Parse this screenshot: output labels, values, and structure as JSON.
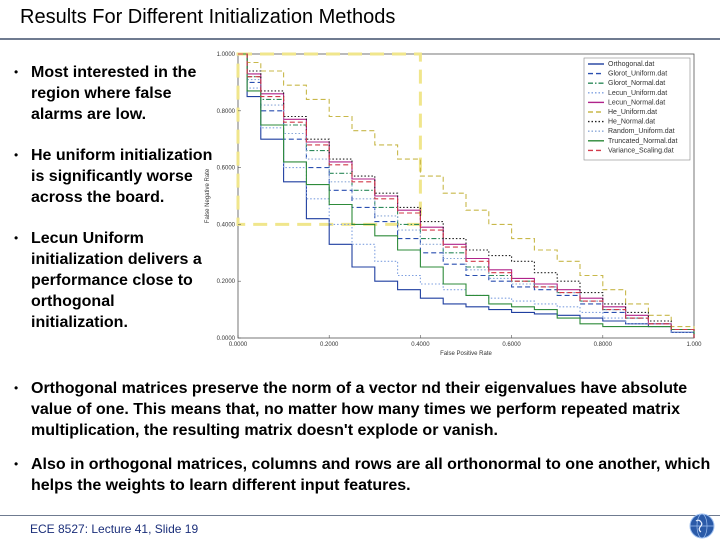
{
  "slide": {
    "title": "Results For Different Initialization Methods",
    "bullets_left": [
      "Most interested in the region where false alarms are low.",
      "He uniform initialization is significantly worse across the board.",
      "Lecun Uniform initialization delivers a performance close to orthogonal initialization."
    ],
    "bullets_bottom": [
      "Orthogonal matrices preserve the norm of a vector nd their eigenvalues have absolute value of one. This means that, no matter how many times we perform repeated matrix multiplication, the resulting matrix doesn't explode or vanish.",
      "Also in orthogonal matrices, columns and rows are all orthonormal to one another, which helps the weights to learn different input features."
    ],
    "footer": "ECE 8527: Lecture 41, Slide 19",
    "bullet_char": "•",
    "colors": {
      "rule": "#6f7b90",
      "footer_text": "#1b2f7a",
      "highlight": "#f0e68c"
    }
  },
  "chart_data": {
    "type": "line",
    "title": "",
    "xlabel": "False Positive Rate",
    "ylabel": "False Negative Rate",
    "xlim": [
      0,
      1
    ],
    "ylim": [
      0,
      1
    ],
    "x_ticks": [
      "0.0000",
      "0.2000",
      "0.4000",
      "0.6000",
      "0.8000",
      "1.000"
    ],
    "y_ticks": [
      "0.0000",
      "0.2000",
      "0.4000",
      "0.6000",
      "0.8000",
      "1.0000"
    ],
    "legend_position": "top-right",
    "highlight_region": {
      "x": [
        0,
        0.4
      ],
      "y": [
        0.4,
        1.0
      ],
      "label": ""
    },
    "series": [
      {
        "name": "Orthogonal.dat",
        "color": "#1f3fa0",
        "dash": "solid",
        "x": [
          0,
          0.02,
          0.05,
          0.1,
          0.15,
          0.2,
          0.25,
          0.3,
          0.35,
          0.4,
          0.45,
          0.5,
          0.55,
          0.6,
          0.65,
          0.7,
          0.75,
          0.8,
          0.85,
          0.9,
          0.95,
          1.0
        ],
        "y": [
          1.0,
          0.85,
          0.7,
          0.55,
          0.42,
          0.33,
          0.25,
          0.2,
          0.17,
          0.14,
          0.12,
          0.11,
          0.1,
          0.09,
          0.085,
          0.08,
          0.07,
          0.06,
          0.05,
          0.04,
          0.02,
          0.0
        ]
      },
      {
        "name": "Glorot_Uniform.dat",
        "color": "#2a4fb0",
        "dash": "dash",
        "x": [
          0,
          0.02,
          0.05,
          0.1,
          0.15,
          0.2,
          0.25,
          0.3,
          0.35,
          0.4,
          0.45,
          0.5,
          0.55,
          0.6,
          0.65,
          0.7,
          0.75,
          0.8,
          0.85,
          0.9,
          0.95,
          1.0
        ],
        "y": [
          1.0,
          0.9,
          0.8,
          0.7,
          0.6,
          0.52,
          0.46,
          0.41,
          0.35,
          0.3,
          0.26,
          0.22,
          0.2,
          0.18,
          0.17,
          0.15,
          0.12,
          0.09,
          0.07,
          0.05,
          0.03,
          0.0
        ]
      },
      {
        "name": "Glorot_Normal.dat",
        "color": "#2c8a5a",
        "dash": "dashdot",
        "x": [
          0,
          0.02,
          0.05,
          0.1,
          0.15,
          0.2,
          0.25,
          0.3,
          0.35,
          0.4,
          0.45,
          0.5,
          0.55,
          0.6,
          0.65,
          0.7,
          0.75,
          0.8,
          0.85,
          0.9,
          0.95,
          1.0
        ],
        "y": [
          1.0,
          0.92,
          0.84,
          0.75,
          0.66,
          0.58,
          0.52,
          0.46,
          0.4,
          0.35,
          0.3,
          0.25,
          0.22,
          0.2,
          0.18,
          0.16,
          0.13,
          0.1,
          0.07,
          0.05,
          0.03,
          0.0
        ]
      },
      {
        "name": "Lecun_Uniform.dat",
        "color": "#7fa0e0",
        "dash": "dot",
        "x": [
          0,
          0.02,
          0.05,
          0.1,
          0.15,
          0.2,
          0.25,
          0.3,
          0.35,
          0.4,
          0.45,
          0.5,
          0.55,
          0.6,
          0.65,
          0.7,
          0.75,
          0.8,
          0.85,
          0.9,
          0.95,
          1.0
        ],
        "y": [
          1.0,
          0.88,
          0.74,
          0.6,
          0.49,
          0.4,
          0.33,
          0.27,
          0.22,
          0.19,
          0.17,
          0.15,
          0.14,
          0.13,
          0.12,
          0.11,
          0.09,
          0.07,
          0.05,
          0.04,
          0.02,
          0.0
        ]
      },
      {
        "name": "Lecun_Normal.dat",
        "color": "#b0238a",
        "dash": "solid",
        "x": [
          0,
          0.02,
          0.05,
          0.1,
          0.15,
          0.2,
          0.25,
          0.3,
          0.35,
          0.4,
          0.45,
          0.5,
          0.55,
          0.6,
          0.65,
          0.7,
          0.75,
          0.8,
          0.85,
          0.9,
          0.95,
          1.0
        ],
        "y": [
          1.0,
          0.93,
          0.86,
          0.77,
          0.69,
          0.62,
          0.56,
          0.5,
          0.45,
          0.39,
          0.33,
          0.28,
          0.24,
          0.21,
          0.19,
          0.17,
          0.14,
          0.11,
          0.08,
          0.05,
          0.03,
          0.0
        ]
      },
      {
        "name": "He_Uniform.dat",
        "color": "#c8b84a",
        "dash": "dash",
        "x": [
          0,
          0.02,
          0.05,
          0.1,
          0.15,
          0.2,
          0.25,
          0.3,
          0.35,
          0.4,
          0.45,
          0.5,
          0.55,
          0.6,
          0.65,
          0.7,
          0.75,
          0.8,
          0.85,
          0.9,
          0.95,
          1.0
        ],
        "y": [
          1.0,
          0.97,
          0.94,
          0.89,
          0.84,
          0.78,
          0.73,
          0.68,
          0.63,
          0.57,
          0.51,
          0.45,
          0.4,
          0.35,
          0.31,
          0.27,
          0.22,
          0.17,
          0.12,
          0.08,
          0.04,
          0.0
        ]
      },
      {
        "name": "He_Normal.dat",
        "color": "#222222",
        "dash": "dot",
        "x": [
          0,
          0.02,
          0.05,
          0.1,
          0.15,
          0.2,
          0.25,
          0.3,
          0.35,
          0.4,
          0.45,
          0.5,
          0.55,
          0.6,
          0.65,
          0.7,
          0.75,
          0.8,
          0.85,
          0.9,
          0.95,
          1.0
        ],
        "y": [
          1.0,
          0.94,
          0.87,
          0.78,
          0.7,
          0.63,
          0.57,
          0.51,
          0.46,
          0.41,
          0.35,
          0.31,
          0.29,
          0.27,
          0.23,
          0.2,
          0.16,
          0.12,
          0.09,
          0.06,
          0.03,
          0.0
        ]
      },
      {
        "name": "Random_Uniform.dat",
        "color": "#8aa8d8",
        "dash": "dot",
        "x": [
          0,
          0.02,
          0.05,
          0.1,
          0.15,
          0.2,
          0.25,
          0.3,
          0.35,
          0.4,
          0.45,
          0.5,
          0.55,
          0.6,
          0.65,
          0.7,
          0.75,
          0.8,
          0.85,
          0.9,
          0.95,
          1.0
        ],
        "y": [
          1.0,
          0.91,
          0.82,
          0.72,
          0.63,
          0.55,
          0.49,
          0.43,
          0.38,
          0.33,
          0.28,
          0.24,
          0.21,
          0.19,
          0.18,
          0.16,
          0.13,
          0.1,
          0.07,
          0.05,
          0.03,
          0.0
        ]
      },
      {
        "name": "Truncated_Normal.dat",
        "color": "#2e8b3a",
        "dash": "solid",
        "x": [
          0,
          0.02,
          0.05,
          0.1,
          0.15,
          0.2,
          0.25,
          0.3,
          0.35,
          0.4,
          0.45,
          0.5,
          0.55,
          0.6,
          0.65,
          0.7,
          0.75,
          0.8,
          0.85,
          0.9,
          0.95,
          1.0
        ],
        "y": [
          1.0,
          0.87,
          0.75,
          0.62,
          0.54,
          0.47,
          0.4,
          0.36,
          0.31,
          0.25,
          0.19,
          0.15,
          0.12,
          0.11,
          0.1,
          0.07,
          0.05,
          0.04,
          0.04,
          0.04,
          0.03,
          0.0
        ]
      },
      {
        "name": "Variance_Scaling.dat",
        "color": "#d23a4a",
        "dash": "dash",
        "x": [
          0,
          0.02,
          0.05,
          0.1,
          0.15,
          0.2,
          0.25,
          0.3,
          0.35,
          0.4,
          0.45,
          0.5,
          0.55,
          0.6,
          0.65,
          0.7,
          0.75,
          0.8,
          0.85,
          0.9,
          0.95,
          1.0
        ],
        "y": [
          1.0,
          0.92,
          0.85,
          0.76,
          0.68,
          0.61,
          0.55,
          0.49,
          0.44,
          0.38,
          0.32,
          0.27,
          0.23,
          0.2,
          0.18,
          0.16,
          0.13,
          0.1,
          0.07,
          0.05,
          0.03,
          0.0
        ]
      }
    ]
  }
}
